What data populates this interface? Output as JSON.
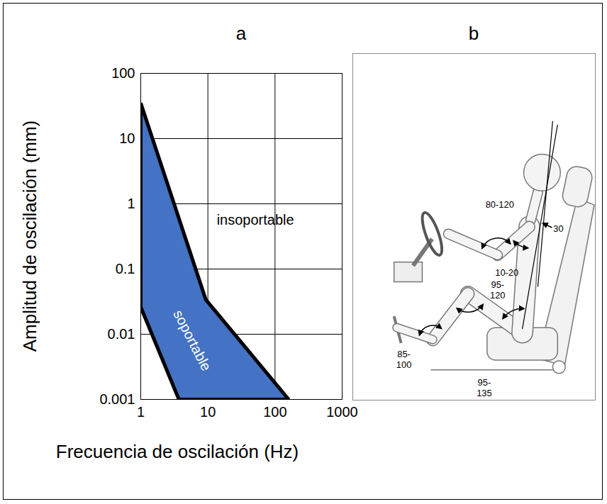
{
  "chart_data": {
    "type": "area",
    "title": "a",
    "x_label": "Frecuencia de oscilación (Hz)",
    "y_label": "Amplitud de oscilación (mm)",
    "log": true,
    "grid": true,
    "xlim": [
      1,
      1000
    ],
    "xticks": [
      1,
      10,
      100,
      1000
    ],
    "ylim": [
      0.001,
      100
    ],
    "yticks": [
      0.001,
      0.01,
      0.1,
      1,
      10,
      100
    ],
    "x": [
      1,
      9.3,
      160,
      3.7,
      1
    ],
    "values": [
      35,
      0.034,
      0.001,
      0.001,
      0.026
    ],
    "color": "#4472c4",
    "annotations": [
      {
        "text": "soportable",
        "x": 5.8,
        "y": 0.008
      },
      {
        "text": "insoportable",
        "x": 51,
        "y": 0.56
      }
    ]
  },
  "diagram": {
    "title": "b",
    "angles": [
      "80-120",
      "30",
      "10-20",
      "95-120",
      "85-100",
      "95-135"
    ]
  }
}
